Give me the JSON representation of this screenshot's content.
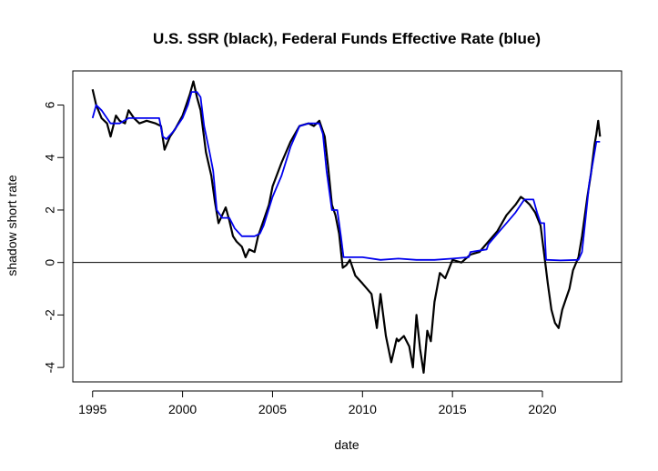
{
  "chart_data": {
    "type": "line",
    "title": "U.S. SSR (black), Federal Funds Effective Rate (blue)",
    "xlabel": "date",
    "ylabel": "shadow short rate",
    "xlim": [
      1993.9,
      2024.4
    ],
    "ylim": [
      -4.55,
      7.3
    ],
    "x_ticks": [
      "1995",
      "2000",
      "2005",
      "2010",
      "2015",
      "2020"
    ],
    "y_ticks": [
      "-4",
      "-2",
      "0",
      "2",
      "4",
      "6"
    ],
    "reference_line": 0,
    "grid": false,
    "colors": {
      "ssr": "#000000",
      "ffr": "#0000ee",
      "zero_line": "#000000"
    },
    "series": [
      {
        "name": "SSR",
        "color": "#000000",
        "x": [
          1995.0,
          1995.2,
          1995.5,
          1995.8,
          1996.0,
          1996.3,
          1996.5,
          1996.8,
          1997.0,
          1997.3,
          1997.6,
          1998.0,
          1998.5,
          1998.8,
          1999.0,
          1999.3,
          1999.6,
          2000.0,
          2000.2,
          2000.4,
          2000.6,
          2000.8,
          2001.0,
          2001.3,
          2001.6,
          2001.8,
          2002.0,
          2002.2,
          2002.4,
          2002.6,
          2002.8,
          2003.0,
          2003.3,
          2003.5,
          2003.7,
          2004.0,
          2004.2,
          2004.5,
          2004.8,
          2005.0,
          2005.5,
          2006.0,
          2006.5,
          2007.0,
          2007.3,
          2007.6,
          2007.9,
          2008.1,
          2008.3,
          2008.5,
          2008.7,
          2008.9,
          2009.1,
          2009.3,
          2009.6,
          2010.0,
          2010.5,
          2010.8,
          2011.0,
          2011.3,
          2011.6,
          2011.9,
          2012.0,
          2012.3,
          2012.6,
          2012.8,
          2013.0,
          2013.2,
          2013.4,
          2013.6,
          2013.8,
          2014.0,
          2014.3,
          2014.6,
          2015.0,
          2015.5,
          2016.0,
          2016.5,
          2017.0,
          2017.5,
          2018.0,
          2018.5,
          2018.8,
          2019.0,
          2019.3,
          2019.6,
          2019.9,
          2020.1,
          2020.3,
          2020.5,
          2020.7,
          2020.9,
          2021.1,
          2021.3,
          2021.5,
          2021.7,
          2022.0,
          2022.2,
          2022.5,
          2022.7,
          2022.9,
          2023.0,
          2023.1,
          2023.2
        ],
        "y": [
          6.6,
          6.0,
          5.5,
          5.3,
          4.8,
          5.6,
          5.4,
          5.3,
          5.8,
          5.5,
          5.3,
          5.4,
          5.3,
          5.2,
          4.3,
          4.8,
          5.1,
          5.6,
          6.0,
          6.4,
          6.9,
          6.3,
          5.8,
          4.2,
          3.3,
          2.3,
          1.5,
          1.8,
          2.1,
          1.6,
          1.0,
          0.8,
          0.6,
          0.2,
          0.5,
          0.4,
          1.0,
          1.6,
          2.2,
          2.9,
          3.8,
          4.6,
          5.2,
          5.3,
          5.2,
          5.4,
          4.8,
          3.6,
          2.2,
          1.8,
          1.1,
          -0.2,
          -0.1,
          0.1,
          -0.5,
          -0.8,
          -1.2,
          -2.5,
          -1.2,
          -2.8,
          -3.8,
          -2.9,
          -3.0,
          -2.8,
          -3.2,
          -4.0,
          -2.0,
          -3.3,
          -4.2,
          -2.6,
          -3.0,
          -1.5,
          -0.4,
          -0.6,
          0.1,
          0.0,
          0.3,
          0.4,
          0.8,
          1.2,
          1.8,
          2.2,
          2.5,
          2.4,
          2.2,
          1.9,
          1.4,
          0.3,
          -0.8,
          -1.8,
          -2.3,
          -2.5,
          -1.8,
          -1.4,
          -1.0,
          -0.3,
          0.2,
          1.0,
          2.5,
          3.4,
          4.5,
          4.9,
          5.4,
          4.8
        ]
      },
      {
        "name": "Federal Funds Effective Rate",
        "color": "#0000ee",
        "x": [
          1995.0,
          1995.2,
          1995.5,
          1995.7,
          1996.0,
          1996.5,
          1997.0,
          1997.5,
          1998.0,
          1998.7,
          1998.9,
          1999.1,
          1999.5,
          1999.8,
          2000.0,
          2000.3,
          2000.5,
          2000.8,
          2001.0,
          2001.2,
          2001.5,
          2001.7,
          2001.9,
          2002.2,
          2002.6,
          2002.9,
          2003.3,
          2003.5,
          2004.0,
          2004.3,
          2004.5,
          2005.0,
          2005.5,
          2006.0,
          2006.5,
          2007.0,
          2007.6,
          2007.8,
          2008.0,
          2008.3,
          2008.6,
          2008.8,
          2008.95,
          2009.5,
          2010.0,
          2011.0,
          2012.0,
          2013.0,
          2014.0,
          2015.0,
          2015.9,
          2016.0,
          2016.9,
          2017.0,
          2017.5,
          2018.0,
          2018.5,
          2019.0,
          2019.5,
          2019.7,
          2019.9,
          2020.1,
          2020.2,
          2020.3,
          2021.0,
          2022.0,
          2022.2,
          2022.4,
          2022.6,
          2022.8,
          2023.0,
          2023.2
        ],
        "y": [
          5.5,
          6.0,
          5.8,
          5.6,
          5.3,
          5.3,
          5.5,
          5.5,
          5.5,
          5.5,
          4.8,
          4.7,
          5.0,
          5.3,
          5.5,
          6.0,
          6.5,
          6.5,
          6.3,
          5.2,
          4.2,
          3.5,
          2.0,
          1.7,
          1.7,
          1.3,
          1.0,
          1.0,
          1.0,
          1.1,
          1.4,
          2.5,
          3.3,
          4.4,
          5.2,
          5.3,
          5.3,
          4.9,
          3.5,
          2.0,
          2.0,
          1.0,
          0.2,
          0.2,
          0.2,
          0.1,
          0.15,
          0.1,
          0.1,
          0.15,
          0.2,
          0.4,
          0.5,
          0.7,
          1.1,
          1.5,
          1.9,
          2.4,
          2.4,
          1.9,
          1.5,
          1.5,
          0.1,
          0.1,
          0.08,
          0.1,
          0.4,
          1.7,
          3.0,
          3.8,
          4.6,
          4.6
        ]
      }
    ]
  }
}
